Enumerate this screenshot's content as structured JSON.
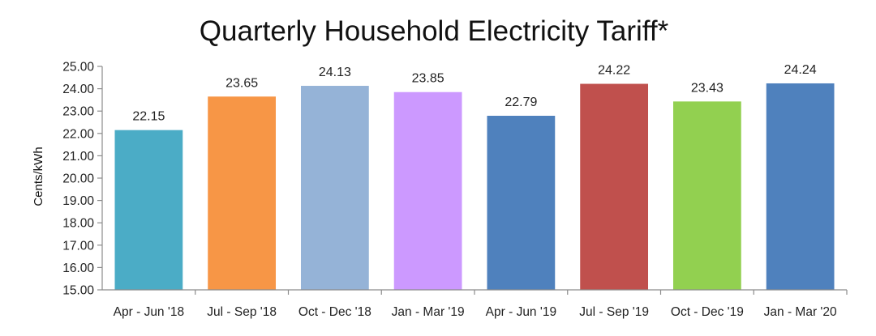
{
  "chart_data": {
    "type": "bar",
    "title": "Quarterly Household Electricity Tariff*",
    "ylabel": "Cents/kWh",
    "xlabel": "",
    "ylim": [
      15,
      25
    ],
    "yticks": [
      "15.00",
      "16.00",
      "17.00",
      "18.00",
      "19.00",
      "20.00",
      "21.00",
      "22.00",
      "23.00",
      "24.00",
      "25.00"
    ],
    "categories": [
      "Apr - Jun '18",
      "Jul - Sep '18",
      "Oct - Dec '18",
      "Jan - Mar '19",
      "Apr - Jun '19",
      "Jul - Sep '19",
      "Oct - Dec '19",
      "Jan - Mar '20"
    ],
    "values": [
      22.15,
      23.65,
      24.13,
      23.85,
      22.79,
      24.22,
      23.43,
      24.24
    ],
    "data_labels": [
      "22.15",
      "23.65",
      "24.13",
      "23.85",
      "22.79",
      "24.22",
      "23.43",
      "24.24"
    ],
    "colors": [
      "#4bacc6",
      "#f79646",
      "#95b3d7",
      "#cc99ff",
      "#4f81bd",
      "#c0504d",
      "#92d050",
      "#4f81bd"
    ],
    "grid": false,
    "legend": "none"
  }
}
